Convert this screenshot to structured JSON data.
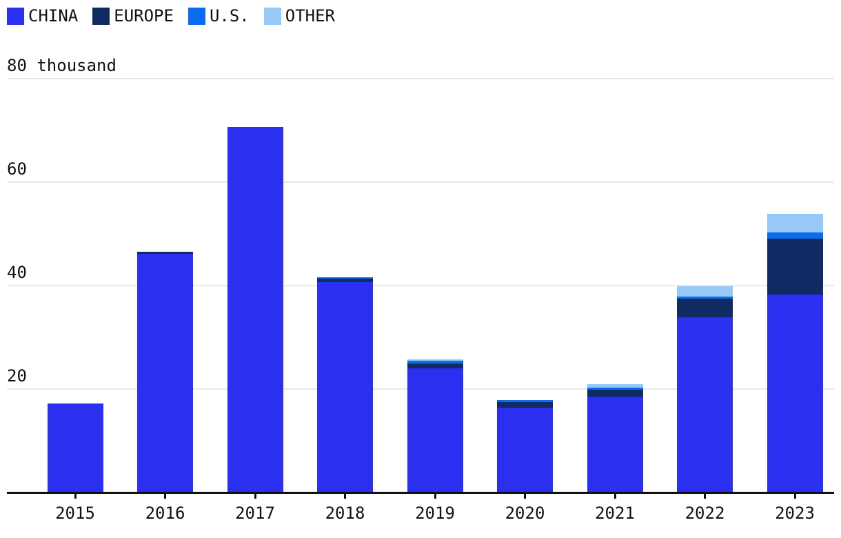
{
  "chart_data": {
    "type": "bar",
    "stacked": true,
    "title": "",
    "top_axis_label": "80 thousand",
    "unit": "thousand",
    "categories": [
      "2015",
      "2016",
      "2017",
      "2018",
      "2019",
      "2020",
      "2021",
      "2022",
      "2023"
    ],
    "series": [
      {
        "name": "CHINA",
        "color": "#2a2ff0",
        "values": [
          17.1,
          46.0,
          70.6,
          40.6,
          23.9,
          16.3,
          18.4,
          33.7,
          38.2
        ]
      },
      {
        "name": "EUROPE",
        "color": "#102a63",
        "values": [
          0,
          0.4,
          0,
          0.6,
          0.9,
          1.1,
          1.4,
          3.6,
          10.7
        ]
      },
      {
        "name": "U.S.",
        "color": "#0a6cee",
        "values": [
          0,
          0,
          0,
          0.3,
          0.5,
          0.4,
          0.3,
          0.5,
          1.2
        ]
      },
      {
        "name": "OTHER",
        "color": "#97c9f8",
        "values": [
          0,
          0,
          0,
          0,
          0.3,
          0,
          0.7,
          1.9,
          3.7
        ]
      }
    ],
    "ylim": [
      0,
      80
    ],
    "yticks": [
      {
        "value": 20,
        "label": "20"
      },
      {
        "value": 40,
        "label": "40"
      },
      {
        "value": 60,
        "label": "60"
      },
      {
        "value": 80,
        "label": "80 thousand"
      }
    ],
    "grid": true,
    "legend_position": "top-left",
    "axis_color": "#111111",
    "gridline_color": "#e9e9e9",
    "text_color": "#111111"
  }
}
